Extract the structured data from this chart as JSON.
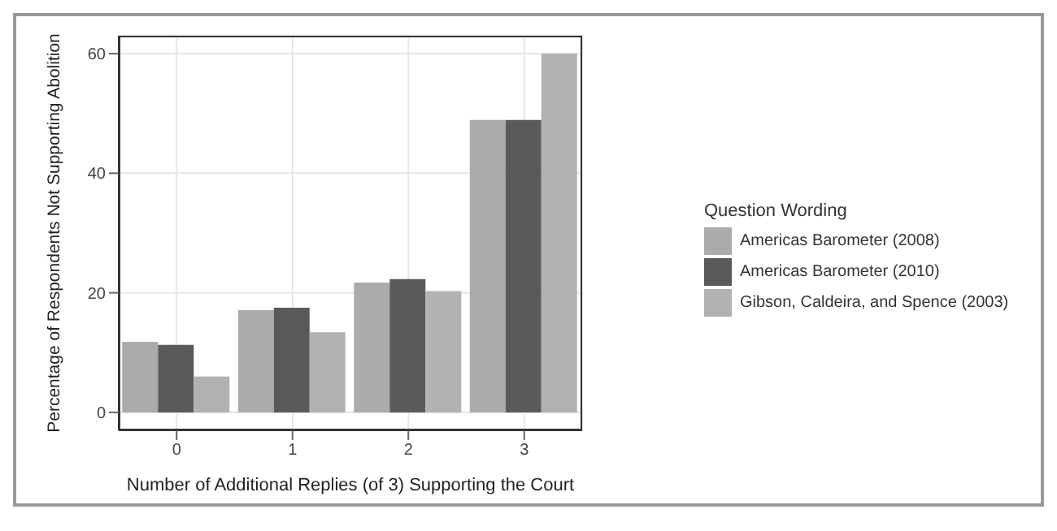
{
  "chart_data": {
    "type": "bar",
    "xlabel": "Number of Additional Replies (of 3) Supporting the Court",
    "ylabel": "Percentage of Respondents Not Supporting Abolition",
    "legend_title": "Question Wording",
    "categories": [
      "0",
      "1",
      "2",
      "3"
    ],
    "series": [
      {
        "name": "Americas Barometer (2008)",
        "color": "#ababab",
        "values": [
          11.8,
          17.1,
          21.7,
          48.9
        ]
      },
      {
        "name": "Americas Barometer (2010)",
        "color": "#5a5a5a",
        "values": [
          11.3,
          17.5,
          22.3,
          48.9
        ]
      },
      {
        "name": "Gibson, Caldeira, and Spence (2003)",
        "color": "#b2b2b2",
        "values": [
          6.0,
          13.4,
          20.3,
          60.0
        ]
      }
    ],
    "ylim": [
      -3,
      63
    ],
    "yticks": [
      0,
      20,
      40,
      60
    ],
    "grid": true,
    "legend": "right"
  }
}
